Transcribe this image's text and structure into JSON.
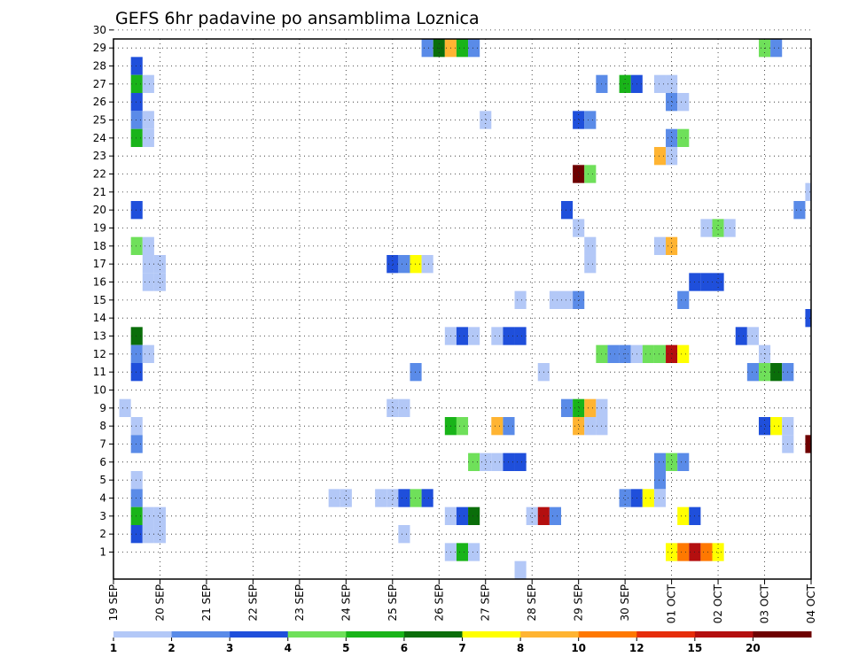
{
  "chart_data": {
    "type": "heatmap",
    "title": "GEFS 6hr padavine po ansamblima Loznica",
    "x_tick_labels": [
      "19 SEP",
      "20 SEP",
      "21 SEP",
      "22 SEP",
      "23 SEP",
      "24 SEP",
      "25 SEP",
      "26 SEP",
      "27 SEP",
      "28 SEP",
      "29 SEP",
      "30 SEP",
      "01 OCT",
      "02 OCT",
      "03 OCT",
      "04 OCT"
    ],
    "y_tick_labels": [
      "1",
      "2",
      "3",
      "4",
      "5",
      "6",
      "7",
      "8",
      "9",
      "10",
      "11",
      "12",
      "13",
      "14",
      "15",
      "16",
      "17",
      "18",
      "19",
      "20",
      "21",
      "22",
      "23",
      "24",
      "25",
      "26",
      "27",
      "28",
      "29",
      "30"
    ],
    "x_range_steps": [
      0,
      60
    ],
    "steps_per_day": 4,
    "grid": true,
    "color_levels": [
      {
        "label": "1",
        "color": "#b3c8f7"
      },
      {
        "label": "2",
        "color": "#5a8be8"
      },
      {
        "label": "3",
        "color": "#1f4fdb"
      },
      {
        "label": "4",
        "color": "#6fe05a"
      },
      {
        "label": "5",
        "color": "#19b419"
      },
      {
        "label": "6",
        "color": "#0a6e0a"
      },
      {
        "label": "7",
        "color": "#ffff00"
      },
      {
        "label": "8",
        "color": "#ffb432"
      },
      {
        "label": "10",
        "color": "#ff7800"
      },
      {
        "label": "12",
        "color": "#e62d0a"
      },
      {
        "label": "15",
        "color": "#b40f0f"
      },
      {
        "label": "20",
        "color": "#6e0000"
      }
    ],
    "colorbar_tail": "#6e0000",
    "cells": [
      [
        2,
        30,
        8
      ],
      [
        3,
        30,
        1
      ],
      [
        27,
        30,
        3
      ],
      [
        55,
        30,
        0
      ],
      [
        56,
        30,
        1
      ],
      [
        57,
        30,
        1
      ],
      [
        27,
        29,
        1
      ],
      [
        28,
        29,
        5
      ],
      [
        29,
        29,
        7
      ],
      [
        30,
        29,
        4
      ],
      [
        31,
        29,
        1
      ],
      [
        56,
        29,
        3
      ],
      [
        57,
        29,
        1
      ],
      [
        2,
        28,
        2
      ],
      [
        2,
        27,
        4
      ],
      [
        3,
        27,
        0
      ],
      [
        42,
        27,
        1
      ],
      [
        44,
        27,
        4
      ],
      [
        45,
        27,
        2
      ],
      [
        47,
        27,
        0
      ],
      [
        48,
        27,
        0
      ],
      [
        2,
        26,
        2
      ],
      [
        48,
        26,
        1
      ],
      [
        49,
        26,
        0
      ],
      [
        2,
        25,
        1
      ],
      [
        3,
        25,
        0
      ],
      [
        32,
        25,
        0
      ],
      [
        40,
        25,
        2
      ],
      [
        41,
        25,
        1
      ],
      [
        2,
        24,
        4
      ],
      [
        3,
        24,
        0
      ],
      [
        48,
        24,
        1
      ],
      [
        49,
        24,
        3
      ],
      [
        47,
        23,
        7
      ],
      [
        48,
        23,
        0
      ],
      [
        40,
        22,
        11
      ],
      [
        41,
        22,
        3
      ],
      [
        60,
        21,
        0
      ],
      [
        2,
        20,
        2
      ],
      [
        39,
        20,
        2
      ],
      [
        59,
        20,
        1
      ],
      [
        40,
        19,
        0
      ],
      [
        51,
        19,
        0
      ],
      [
        52,
        19,
        3
      ],
      [
        53,
        19,
        0
      ],
      [
        2,
        18,
        3
      ],
      [
        3,
        18,
        0
      ],
      [
        41,
        18,
        0
      ],
      [
        47,
        18,
        0
      ],
      [
        48,
        18,
        7
      ],
      [
        3,
        17,
        0
      ],
      [
        4,
        17,
        0
      ],
      [
        24,
        17,
        2
      ],
      [
        25,
        17,
        1
      ],
      [
        26,
        17,
        6
      ],
      [
        27,
        17,
        0
      ],
      [
        41,
        17,
        0
      ],
      [
        3,
        16,
        0
      ],
      [
        4,
        16,
        0
      ],
      [
        50,
        16,
        2
      ],
      [
        51,
        16,
        2
      ],
      [
        52,
        16,
        2
      ],
      [
        35,
        15,
        0
      ],
      [
        38,
        15,
        0
      ],
      [
        39,
        15,
        0
      ],
      [
        40,
        15,
        1
      ],
      [
        49,
        15,
        1
      ],
      [
        60,
        14,
        2
      ],
      [
        2,
        13,
        5
      ],
      [
        29,
        13,
        0
      ],
      [
        30,
        13,
        2
      ],
      [
        31,
        13,
        0
      ],
      [
        33,
        13,
        0
      ],
      [
        34,
        13,
        2
      ],
      [
        35,
        13,
        2
      ],
      [
        54,
        13,
        2
      ],
      [
        55,
        13,
        0
      ],
      [
        2,
        12,
        1
      ],
      [
        3,
        12,
        0
      ],
      [
        42,
        12,
        3
      ],
      [
        43,
        12,
        1
      ],
      [
        44,
        12,
        1
      ],
      [
        45,
        12,
        0
      ],
      [
        46,
        12,
        3
      ],
      [
        47,
        12,
        3
      ],
      [
        48,
        12,
        10
      ],
      [
        49,
        12,
        6
      ],
      [
        56,
        12,
        0
      ],
      [
        2,
        11,
        2
      ],
      [
        26,
        11,
        1
      ],
      [
        37,
        11,
        0
      ],
      [
        55,
        11,
        1
      ],
      [
        56,
        11,
        3
      ],
      [
        57,
        11,
        5
      ],
      [
        58,
        11,
        1
      ],
      [
        24,
        9,
        0
      ],
      [
        25,
        9,
        0
      ],
      [
        39,
        9,
        1
      ],
      [
        40,
        9,
        4
      ],
      [
        41,
        9,
        7
      ],
      [
        42,
        9,
        0
      ],
      [
        1,
        9,
        0
      ],
      [
        2,
        8,
        0
      ],
      [
        29,
        8,
        4
      ],
      [
        30,
        8,
        3
      ],
      [
        33,
        8,
        7
      ],
      [
        34,
        8,
        1
      ],
      [
        40,
        8,
        7
      ],
      [
        41,
        8,
        0
      ],
      [
        42,
        8,
        0
      ],
      [
        56,
        8,
        2
      ],
      [
        57,
        8,
        6
      ],
      [
        58,
        8,
        0
      ],
      [
        2,
        7,
        1
      ],
      [
        58,
        7,
        0
      ],
      [
        60,
        7,
        11
      ],
      [
        31,
        6,
        3
      ],
      [
        32,
        6,
        0
      ],
      [
        33,
        6,
        0
      ],
      [
        34,
        6,
        2
      ],
      [
        35,
        6,
        2
      ],
      [
        47,
        6,
        1
      ],
      [
        48,
        6,
        3
      ],
      [
        49,
        6,
        1
      ],
      [
        2,
        5,
        0
      ],
      [
        47,
        5,
        1
      ],
      [
        2,
        4,
        1
      ],
      [
        19,
        4,
        0
      ],
      [
        20,
        4,
        0
      ],
      [
        23,
        4,
        0
      ],
      [
        24,
        4,
        0
      ],
      [
        25,
        4,
        2
      ],
      [
        26,
        4,
        3
      ],
      [
        27,
        4,
        2
      ],
      [
        44,
        4,
        1
      ],
      [
        45,
        4,
        2
      ],
      [
        46,
        4,
        6
      ],
      [
        47,
        4,
        0
      ],
      [
        2,
        3,
        4
      ],
      [
        3,
        3,
        0
      ],
      [
        4,
        3,
        0
      ],
      [
        29,
        3,
        0
      ],
      [
        30,
        3,
        2
      ],
      [
        31,
        3,
        5
      ],
      [
        36,
        3,
        0
      ],
      [
        37,
        3,
        10
      ],
      [
        38,
        3,
        1
      ],
      [
        49,
        3,
        6
      ],
      [
        50,
        3,
        2
      ],
      [
        2,
        2,
        2
      ],
      [
        3,
        2,
        0
      ],
      [
        4,
        2,
        0
      ],
      [
        25,
        2,
        0
      ],
      [
        29,
        1,
        0
      ],
      [
        30,
        1,
        4
      ],
      [
        31,
        1,
        0
      ],
      [
        48,
        1,
        6
      ],
      [
        49,
        1,
        8
      ],
      [
        50,
        1,
        10
      ],
      [
        51,
        1,
        8
      ],
      [
        52,
        1,
        6
      ],
      [
        35,
        0,
        0
      ]
    ]
  }
}
